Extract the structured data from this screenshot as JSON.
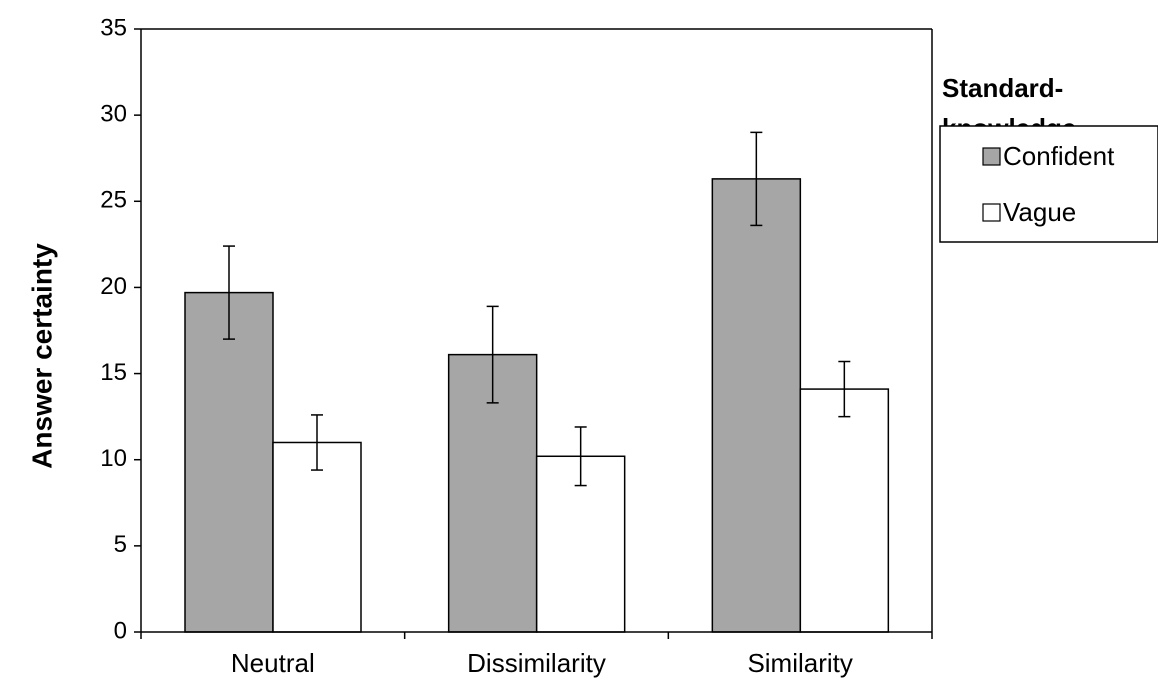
{
  "chart_data": {
    "type": "bar",
    "categories": [
      "Neutral",
      "Dissimilarity",
      "Similarity"
    ],
    "series": [
      {
        "name": "Confident",
        "values": [
          19.7,
          16.1,
          26.3
        ],
        "errors": [
          2.7,
          2.8,
          2.7
        ],
        "color": "#a6a6a6"
      },
      {
        "name": "Vague",
        "values": [
          11.0,
          10.2,
          14.1
        ],
        "errors": [
          1.6,
          1.7,
          1.6
        ],
        "color": "#ffffff"
      }
    ],
    "ylabel": "Answer  certainty",
    "xlabel": "",
    "ylim": [
      0,
      35
    ],
    "yticks": [
      0,
      5,
      10,
      15,
      20,
      25,
      30,
      35
    ],
    "legend": {
      "title_line1": "Standard-",
      "title_line2": "knowledge",
      "placement": "right"
    },
    "grid": false
  }
}
